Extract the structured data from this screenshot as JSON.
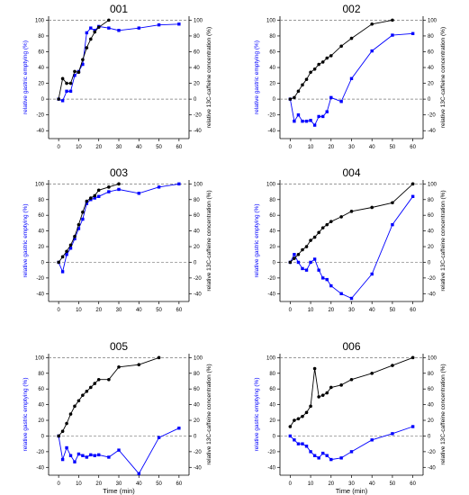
{
  "chart_data": [
    {
      "type": "line",
      "title": "001",
      "xlabel": "",
      "ylabel_left": "relative gastric emptying (%)",
      "ylabel_right": "relative 13C-caffeine concentration (%)",
      "xlim": [
        -5,
        65
      ],
      "ylim": [
        -50,
        105
      ],
      "x_ticks": [
        "0",
        "10",
        "20",
        "30",
        "40",
        "50",
        "60"
      ],
      "y_ticks": [
        "-40",
        "-20",
        "0",
        "20",
        "40",
        "60",
        "80",
        "100"
      ],
      "series": [
        {
          "color": "#0000ff",
          "x": [
            0,
            2,
            4,
            6,
            8,
            10,
            12,
            14,
            16,
            18,
            20,
            25,
            30,
            40,
            50,
            60
          ],
          "y": [
            0,
            -2,
            10,
            10,
            30,
            35,
            44,
            84,
            90,
            87,
            92,
            90,
            87,
            90,
            94,
            95
          ]
        },
        {
          "color": "#000000",
          "x": [
            0,
            2,
            4,
            6,
            8,
            10,
            12,
            14,
            16,
            18,
            20,
            25
          ],
          "y": [
            0,
            26,
            20,
            20,
            35,
            34,
            50,
            65,
            76,
            85,
            91,
            100
          ]
        }
      ]
    },
    {
      "type": "line",
      "title": "002",
      "xlabel": "",
      "ylabel_left": "relative gastric emptying (%)",
      "ylabel_right": "relative 13C-caffeine concentration (%)",
      "xlim": [
        -5,
        65
      ],
      "ylim": [
        -50,
        105
      ],
      "x_ticks": [
        "0",
        "10",
        "20",
        "30",
        "40",
        "50",
        "60"
      ],
      "y_ticks": [
        "-40",
        "-20",
        "0",
        "20",
        "40",
        "60",
        "80",
        "100"
      ],
      "series": [
        {
          "color": "#0000ff",
          "x": [
            0,
            2,
            4,
            6,
            8,
            10,
            12,
            14,
            16,
            18,
            20,
            25,
            30,
            40,
            50,
            60
          ],
          "y": [
            0,
            -28,
            -20,
            -28,
            -28,
            -27,
            -33,
            -22,
            -22,
            -16,
            2,
            -3,
            26,
            61,
            81,
            83
          ]
        },
        {
          "color": "#000000",
          "x": [
            0,
            2,
            4,
            6,
            8,
            10,
            12,
            14,
            16,
            18,
            20,
            25,
            30,
            40,
            50
          ],
          "y": [
            0,
            2,
            10,
            18,
            25,
            34,
            38,
            44,
            47,
            52,
            55,
            67,
            77,
            95,
            100
          ]
        }
      ]
    },
    {
      "type": "line",
      "title": "003",
      "xlabel": "",
      "ylabel_left": "relative gastric emptying (%)",
      "ylabel_right": "relative 13C-caffeine concentration (%)",
      "xlim": [
        -5,
        65
      ],
      "ylim": [
        -50,
        105
      ],
      "x_ticks": [
        "0",
        "10",
        "20",
        "30",
        "40",
        "50",
        "60"
      ],
      "y_ticks": [
        "-40",
        "-20",
        "0",
        "20",
        "40",
        "60",
        "80",
        "100"
      ],
      "series": [
        {
          "color": "#0000ff",
          "x": [
            0,
            2,
            4,
            6,
            8,
            10,
            12,
            14,
            16,
            18,
            20,
            25,
            30,
            40,
            50,
            60
          ],
          "y": [
            0,
            -12,
            10,
            18,
            30,
            43,
            55,
            75,
            80,
            82,
            84,
            90,
            93,
            88,
            96,
            100
          ]
        },
        {
          "color": "#000000",
          "x": [
            0,
            2,
            4,
            6,
            8,
            10,
            12,
            14,
            16,
            18,
            20,
            25,
            30
          ],
          "y": [
            0,
            7,
            14,
            22,
            33,
            48,
            64,
            78,
            82,
            85,
            92,
            96,
            100
          ]
        }
      ]
    },
    {
      "type": "line",
      "title": "004",
      "xlabel": "",
      "ylabel_left": "relative gastric emptying (%)",
      "ylabel_right": "relative 13C-caffeine concentration (%)",
      "xlim": [
        -5,
        65
      ],
      "ylim": [
        -50,
        105
      ],
      "x_ticks": [
        "0",
        "10",
        "20",
        "30",
        "40",
        "50",
        "60"
      ],
      "y_ticks": [
        "-40",
        "-20",
        "0",
        "20",
        "40",
        "60",
        "80",
        "100"
      ],
      "series": [
        {
          "color": "#0000ff",
          "x": [
            0,
            2,
            4,
            6,
            8,
            10,
            12,
            14,
            16,
            18,
            20,
            25,
            30,
            40,
            50,
            60
          ],
          "y": [
            0,
            10,
            0,
            -8,
            -10,
            0,
            4,
            -10,
            -20,
            -22,
            -30,
            -40,
            -46,
            -15,
            48,
            84
          ]
        },
        {
          "color": "#000000",
          "x": [
            0,
            2,
            4,
            6,
            8,
            10,
            12,
            14,
            16,
            18,
            20,
            25,
            30,
            40,
            50,
            60
          ],
          "y": [
            0,
            5,
            10,
            16,
            20,
            28,
            32,
            38,
            44,
            48,
            52,
            58,
            65,
            70,
            76,
            100
          ]
        }
      ]
    },
    {
      "type": "line",
      "title": "005",
      "xlabel": "Time (min)",
      "ylabel_left": "relative gastric emptying (%)",
      "ylabel_right": "relative 13C-caffeine concentration (%)",
      "xlim": [
        -5,
        65
      ],
      "ylim": [
        -50,
        105
      ],
      "x_ticks": [
        "0",
        "10",
        "20",
        "30",
        "40",
        "50",
        "60"
      ],
      "y_ticks": [
        "-40",
        "-20",
        "0",
        "20",
        "40",
        "60",
        "80",
        "100"
      ],
      "series": [
        {
          "color": "#0000ff",
          "x": [
            0,
            2,
            4,
            6,
            8,
            10,
            12,
            14,
            16,
            18,
            20,
            25,
            30,
            40,
            50,
            60
          ],
          "y": [
            0,
            -30,
            -15,
            -25,
            -33,
            -23,
            -25,
            -27,
            -24,
            -25,
            -24,
            -27,
            -18,
            -48,
            -2,
            10
          ]
        },
        {
          "color": "#000000",
          "x": [
            0,
            2,
            4,
            6,
            8,
            10,
            12,
            14,
            16,
            18,
            20,
            25,
            30,
            40,
            50
          ],
          "y": [
            0,
            6,
            16,
            28,
            38,
            45,
            52,
            57,
            62,
            67,
            72,
            72,
            88,
            91,
            100
          ]
        }
      ]
    },
    {
      "type": "line",
      "title": "006",
      "xlabel": "Time (min)",
      "ylabel_left": "relative gastric emptying (%)",
      "ylabel_right": "relative 13C-caffeine concentration (%)",
      "xlim": [
        -5,
        65
      ],
      "ylim": [
        -50,
        105
      ],
      "x_ticks": [
        "0",
        "10",
        "20",
        "30",
        "40",
        "50",
        "60"
      ],
      "y_ticks": [
        "-40",
        "-20",
        "0",
        "20",
        "40",
        "60",
        "80",
        "100"
      ],
      "series": [
        {
          "color": "#0000ff",
          "x": [
            0,
            2,
            4,
            6,
            8,
            10,
            12,
            14,
            16,
            18,
            20,
            25,
            30,
            40,
            50,
            60
          ],
          "y": [
            0,
            -5,
            -10,
            -10,
            -13,
            -20,
            -25,
            -28,
            -22,
            -25,
            -30,
            -28,
            -20,
            -5,
            3,
            12
          ]
        },
        {
          "color": "#000000",
          "x": [
            0,
            2,
            4,
            6,
            8,
            10,
            12,
            14,
            16,
            18,
            20,
            25,
            30,
            40,
            50,
            60
          ],
          "y": [
            12,
            20,
            22,
            25,
            30,
            38,
            86,
            50,
            52,
            55,
            62,
            65,
            72,
            80,
            90,
            100
          ]
        }
      ]
    }
  ]
}
